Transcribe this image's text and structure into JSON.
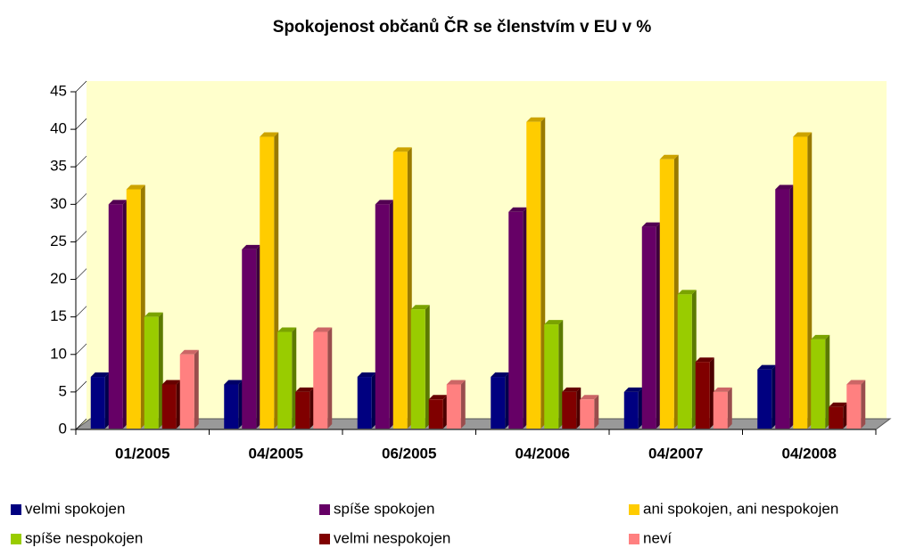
{
  "chart_data": {
    "type": "bar3d",
    "title": "Spokojenost občanů ČR se členstvím v EU v %",
    "categories": [
      "01/2005",
      "04/2005",
      "06/2005",
      "04/2006",
      "04/2007",
      "04/2008"
    ],
    "series": [
      {
        "name": "velmi spokojen",
        "color": "#000080",
        "values": [
          7,
          6,
          7,
          7,
          5,
          8
        ]
      },
      {
        "name": "spíše spokojen",
        "color": "#660066",
        "values": [
          30,
          24,
          30,
          29,
          27,
          32
        ]
      },
      {
        "name": "ani spokojen, ani nespokojen",
        "color": "#ffcc00",
        "values": [
          32,
          39,
          37,
          41,
          36,
          39
        ]
      },
      {
        "name": "spíše nespokojen",
        "color": "#99cc00",
        "values": [
          15,
          13,
          16,
          14,
          18,
          12
        ]
      },
      {
        "name": "velmi nespokojen",
        "color": "#800000",
        "values": [
          6,
          5,
          4,
          5,
          9,
          3
        ]
      },
      {
        "name": "neví",
        "color": "#ff8080",
        "values": [
          10,
          13,
          6,
          4,
          5,
          6
        ]
      }
    ],
    "ylim": [
      0,
      45
    ],
    "yticks": [
      0,
      5,
      10,
      15,
      20,
      25,
      30,
      35,
      40,
      45
    ],
    "legend": "bottom"
  }
}
